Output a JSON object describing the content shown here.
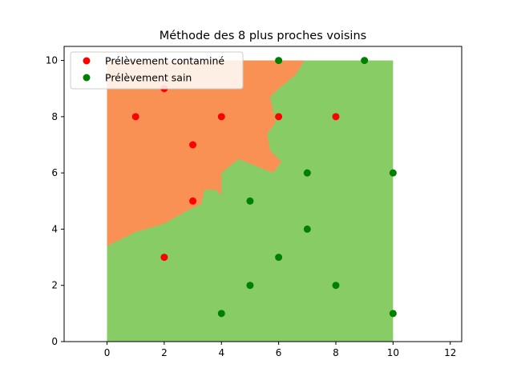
{
  "chart_data": {
    "type": "scatter",
    "title": "Méthode des 8 plus proches voisins",
    "xlabel": "",
    "ylabel": "",
    "xlim": [
      -1.5,
      12.4
    ],
    "ylim": [
      0,
      10.5
    ],
    "xticks": [
      0,
      2,
      4,
      6,
      8,
      10,
      12
    ],
    "yticks": [
      0,
      2,
      4,
      6,
      8,
      10
    ],
    "grid": false,
    "legend_position": "top-left",
    "decision_regions": {
      "extent": {
        "x": [
          0,
          10
        ],
        "y": [
          0,
          10
        ]
      },
      "background_color": "#88cc66",
      "contaminated_color": "#f99155",
      "contaminated_boundary": [
        [
          0,
          3.4
        ],
        [
          0.4,
          3.6
        ],
        [
          1,
          3.9
        ],
        [
          2,
          4.2
        ],
        [
          2.7,
          4.6
        ],
        [
          3.3,
          4.9
        ],
        [
          3.4,
          5.4
        ],
        [
          3.8,
          5.4
        ],
        [
          4.0,
          5.2
        ],
        [
          4.0,
          6.0
        ],
        [
          4.6,
          6.5
        ],
        [
          5.8,
          6.0
        ],
        [
          6.1,
          6.4
        ],
        [
          5.7,
          6.8
        ],
        [
          5.6,
          7.4
        ],
        [
          5.9,
          7.8
        ],
        [
          5.7,
          8.7
        ],
        [
          6.0,
          9.0
        ],
        [
          6.6,
          9.5
        ],
        [
          6.9,
          10.0
        ],
        [
          0,
          10.0
        ]
      ]
    },
    "series": [
      {
        "name": "Prélèvement contaminé",
        "color": "#ff0000",
        "points": [
          [
            1,
            8
          ],
          [
            2,
            9
          ],
          [
            2,
            3
          ],
          [
            3,
            7
          ],
          [
            3,
            5
          ],
          [
            4,
            8
          ],
          [
            6,
            8
          ],
          [
            8,
            8
          ]
        ]
      },
      {
        "name": "Prélèvement sain",
        "color": "#008000",
        "points": [
          [
            4,
            1
          ],
          [
            5,
            5
          ],
          [
            5,
            2
          ],
          [
            6,
            10
          ],
          [
            6,
            3
          ],
          [
            7,
            6
          ],
          [
            7,
            4
          ],
          [
            8,
            2
          ],
          [
            9,
            10
          ],
          [
            10,
            6
          ],
          [
            10,
            1
          ]
        ]
      }
    ]
  }
}
